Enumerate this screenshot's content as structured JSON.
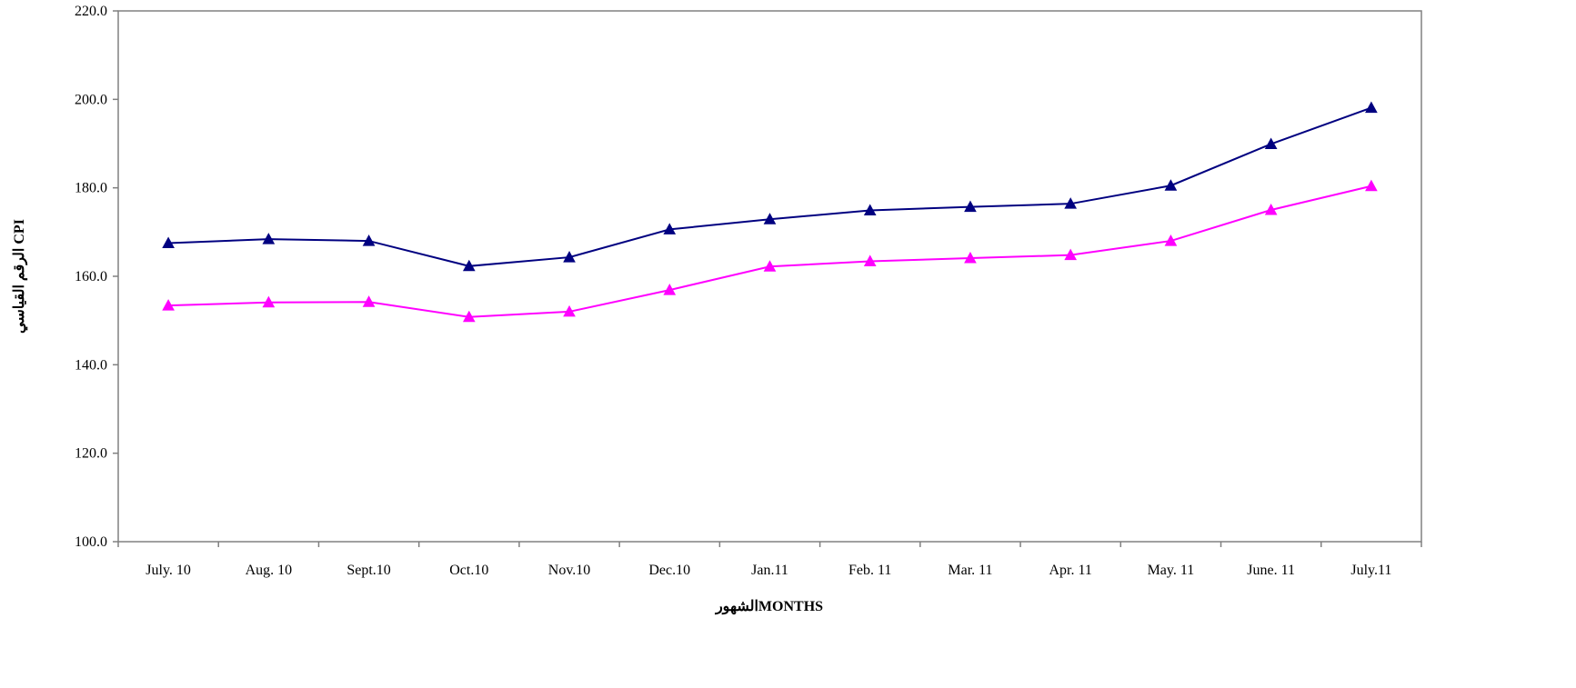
{
  "chart_data": {
    "type": "line",
    "title": "",
    "xlabel": "الشهورMONTHS",
    "ylabel": "الرقم القياسي CPI",
    "categories": [
      "July. 10",
      "Aug. 10",
      "Sept.10",
      "Oct.10",
      "Nov.10",
      "Dec.10",
      "Jan.11",
      "Feb. 11",
      "Mar. 11",
      "Apr. 11",
      "May. 11",
      "June. 11",
      "July.11"
    ],
    "y_ticks": [
      "100.0",
      "120.0",
      "140.0",
      "160.0",
      "180.0",
      "200.0",
      "220.0"
    ],
    "ylim": [
      100,
      220
    ],
    "grid": false,
    "legend": "none",
    "marker": "triangle",
    "series": [
      {
        "color": "#000080",
        "values": [
          167.5,
          168.4,
          168.0,
          162.3,
          164.3,
          170.6,
          172.9,
          174.9,
          175.7,
          176.4,
          180.5,
          189.9,
          198.1
        ]
      },
      {
        "color": "#ff00ff",
        "values": [
          153.4,
          154.1,
          154.2,
          150.8,
          152.0,
          156.9,
          162.2,
          163.4,
          164.1,
          164.8,
          168.0,
          175.0,
          180.4
        ]
      }
    ]
  }
}
